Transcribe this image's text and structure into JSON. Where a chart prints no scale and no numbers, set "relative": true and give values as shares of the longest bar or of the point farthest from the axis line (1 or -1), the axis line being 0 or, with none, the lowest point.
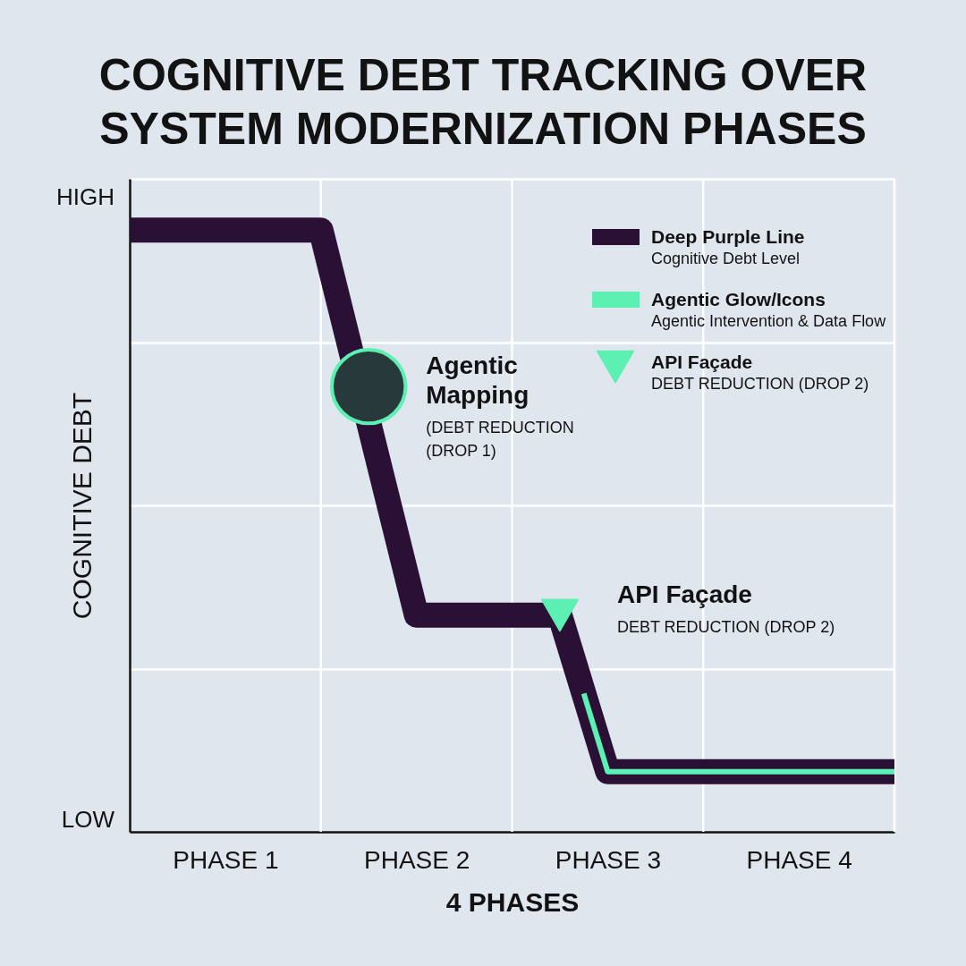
{
  "chart_data": {
    "type": "line",
    "title": "COGNITIVE DEBT TRACKING OVER\nSYSTEM MODERNIZATION PHASES",
    "xlabel": "4 PHASES",
    "ylabel": "COGNITIVE DEBT",
    "relative": true,
    "categories": [
      null,
      null,
      null,
      null,
      "PHASE 1",
      null,
      null,
      null,
      null,
      null,
      null,
      null,
      "PHASE 2",
      null,
      null,
      null,
      null,
      null,
      null,
      null,
      "PHASE 3",
      null,
      null,
      null,
      null,
      null,
      null,
      null,
      "PHASE 4",
      null,
      null,
      null,
      null
    ],
    "grid": true,
    "legend": "top right",
    "series": [
      {
        "name": "Deep Purple Line\nCognitive Debt Level",
        "color": "#2b1036",
        "values": [
          1,
          1,
          1,
          1,
          1,
          1,
          1,
          1,
          1,
          0.84,
          0.68,
          0.52,
          0.36,
          0.36,
          0.36,
          0.36,
          0.36,
          0.36,
          0.36,
          0.23,
          0.1,
          0.1,
          0.1,
          0.1,
          0.1,
          0.1,
          0.1,
          0.1,
          0.1,
          0.1,
          0.1,
          0.1,
          0.1
        ]
      },
      {
        "name": "Agentic Glow/Icons\nAgentic Intervention & Data Flow",
        "color": "#5cf0b2",
        "values": [
          null,
          null,
          null,
          null,
          null,
          null,
          null,
          null,
          null,
          null,
          null,
          null,
          null,
          null,
          null,
          null,
          null,
          null,
          null,
          0.23,
          0.1,
          0.1,
          0.1,
          0.1,
          0.1,
          0.1,
          0.1,
          0.1,
          0.1,
          0.1,
          0.1,
          0.1,
          0.1
        ]
      },
      {
        "type": "scatter",
        "color": "#5cf0b2",
        "marker": "circle",
        "values": [
          null,
          null,
          null,
          null,
          null,
          null,
          null,
          null,
          null,
          null,
          0.74,
          null,
          null,
          null,
          null,
          null,
          null,
          null,
          null,
          null,
          null,
          null,
          null,
          null,
          null,
          null,
          null,
          null,
          null,
          null,
          null,
          null,
          null
        ]
      },
      {
        "name": "API Façade\nDEBT REDUCTION (DROP 2)",
        "type": "scatter",
        "color": "#5cf0b2",
        "marker": "triangle",
        "values": [
          null,
          null,
          null,
          null,
          null,
          null,
          null,
          null,
          null,
          null,
          null,
          null,
          null,
          null,
          null,
          null,
          null,
          null,
          0.36,
          null,
          null,
          null,
          null,
          null,
          null,
          null,
          null,
          null,
          null,
          null,
          null,
          null,
          null
        ]
      }
    ],
    "annotations": [
      "HIGH",
      "LOW",
      "Agentic\nMapping",
      "(DEBT REDUCTION\n(DROP 1)",
      "API Façade",
      "DEBT REDUCTION (DROP 2)"
    ]
  }
}
